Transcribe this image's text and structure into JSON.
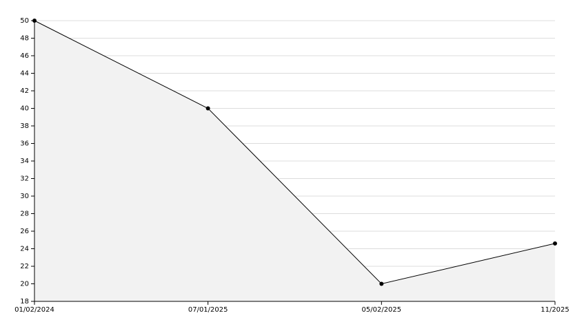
{
  "chart_data": {
    "type": "line",
    "categories": [
      "01/02/2024",
      "07/01/2025",
      "05/02/2025",
      "11/2025"
    ],
    "values": [
      50,
      40,
      20,
      24.6
    ],
    "color": "#000000",
    "fill": "#f2f2f2",
    "ylim": [
      18,
      50
    ],
    "yticks": [
      18,
      20,
      22,
      24,
      26,
      28,
      30,
      32,
      34,
      36,
      38,
      40,
      42,
      44,
      46,
      48,
      50
    ],
    "grid": true
  }
}
